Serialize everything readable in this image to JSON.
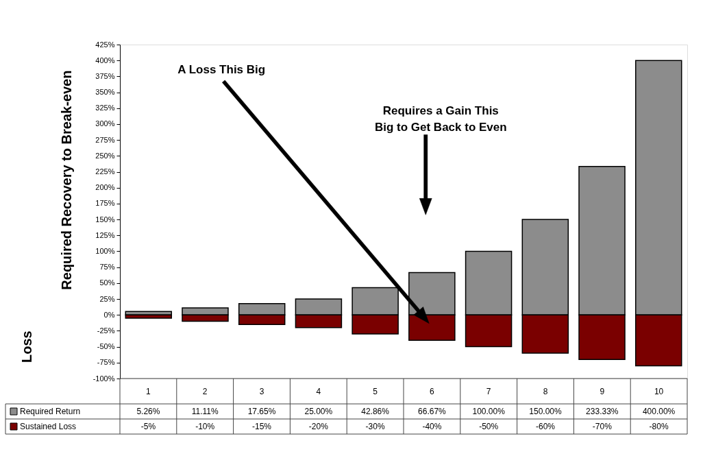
{
  "chart_data": {
    "type": "bar",
    "ylabel": "Required Recovery to Break-even",
    "categories": [
      "1",
      "2",
      "3",
      "4",
      "5",
      "6",
      "7",
      "8",
      "9",
      "10"
    ],
    "series": [
      {
        "name": "Required Return",
        "color": "#8c8c8c",
        "values": [
          5.26,
          11.11,
          17.65,
          25.0,
          42.86,
          66.67,
          100.0,
          150.0,
          233.33,
          400.0
        ],
        "value_labels": [
          "5.26%",
          "11.11%",
          "17.65%",
          "25.00%",
          "42.86%",
          "66.67%",
          "100.00%",
          "150.00%",
          "233.33%",
          "400.00%"
        ]
      },
      {
        "name": "Sustained Loss",
        "color": "#7a0000",
        "values": [
          -5,
          -10,
          -15,
          -20,
          -30,
          -40,
          -50,
          -60,
          -70,
          -80
        ],
        "value_labels": [
          "-5%",
          "-10%",
          "-15%",
          "-20%",
          "-30%",
          "-40%",
          "-50%",
          "-60%",
          "-70%",
          "-80%"
        ]
      }
    ],
    "ylim": [
      -100,
      425
    ],
    "yticks": [
      {
        "value": -100,
        "label": "-100%"
      },
      {
        "value": -75,
        "label": "-75%"
      },
      {
        "value": -50,
        "label": "-50%"
      },
      {
        "value": -25,
        "label": "-25%"
      },
      {
        "value": 0,
        "label": "0%"
      },
      {
        "value": 25,
        "label": "25%"
      },
      {
        "value": 50,
        "label": "50%"
      },
      {
        "value": 75,
        "label": "75%"
      },
      {
        "value": 100,
        "label": "100%"
      },
      {
        "value": 125,
        "label": "125%"
      },
      {
        "value": 150,
        "label": "150%"
      },
      {
        "value": 175,
        "label": "175%"
      },
      {
        "value": 200,
        "label": "200%"
      },
      {
        "value": 225,
        "label": "225%"
      },
      {
        "value": 250,
        "label": "250%"
      },
      {
        "value": 275,
        "label": "275%"
      },
      {
        "value": 300,
        "label": "300%"
      },
      {
        "value": 325,
        "label": "325%"
      },
      {
        "value": 350,
        "label": "350%"
      },
      {
        "value": 375,
        "label": "375%"
      },
      {
        "value": 400,
        "label": "400%"
      },
      {
        "value": 425,
        "label": "425%"
      }
    ],
    "annotations": [
      "Loss",
      "A Loss This Big",
      "Requires a Gain This\nBig to Get Back to Even"
    ],
    "stacked": true,
    "grid": false,
    "legend": "bottom",
    "data_labels": true
  }
}
